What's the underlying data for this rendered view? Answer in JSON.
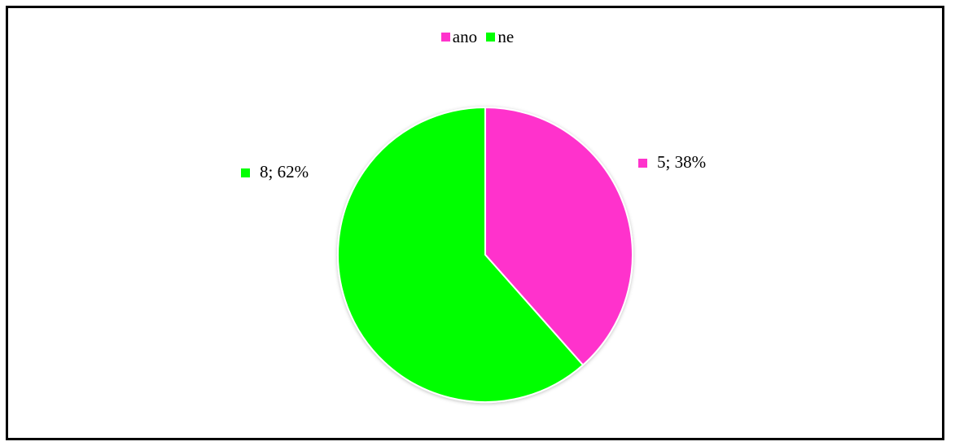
{
  "chart_data": {
    "type": "pie",
    "categories": [
      "ano",
      "ne"
    ],
    "values": [
      5,
      8
    ],
    "labels": [
      "5; 38%",
      "8; 62%"
    ],
    "colors": [
      "#ff33cc",
      "#00ff00"
    ],
    "legend_position": "top"
  }
}
